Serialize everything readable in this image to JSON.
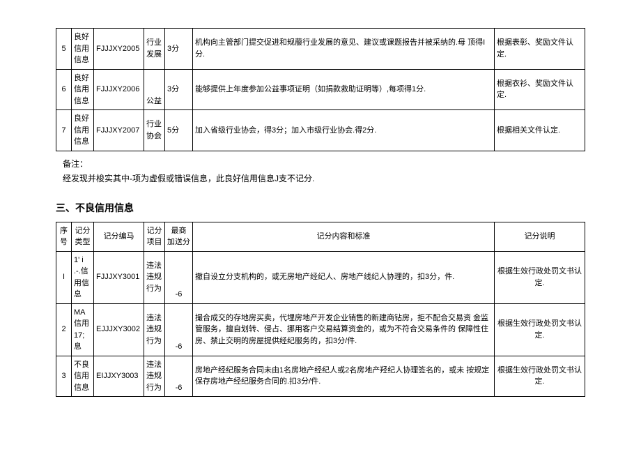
{
  "table1": {
    "rows": [
      {
        "idx": "5",
        "type": "良好信用信息",
        "code": "FJJJXY2005",
        "item": "行业发展",
        "score": "3分",
        "desc": "机构向主管部门提交促进和规菔行业发展的意见、建议或课题报告并被采纳的.母 顶得I分.",
        "note": "根据表彰、奖励文件认 定."
      },
      {
        "idx": "6",
        "type": "良好信用信息",
        "code": "FJJJXY2006",
        "item": "公益",
        "score": "3分",
        "desc": "能够提供上年度参加公益事项证明（如捐款救助证明等）,每项得1分.",
        "note": "根据衣衫、奖励文件认 定."
      },
      {
        "idx": "7",
        "type": "良好信用信息",
        "code": "FJJJXY2007",
        "item": "行业协会",
        "score": "5分",
        "desc": "加入省级行业协会，得3分；加入市级行业协会.得2分.",
        "note": "根据相关文件认定."
      }
    ]
  },
  "remark": {
    "title": "备注：",
    "text": "经发现并梭实其中-项为虚假或错误信息，此良好信用信息J支不记分."
  },
  "section3": "三、不良信用信息",
  "table2": {
    "headers": {
      "idx": "序号",
      "type": "记分类型",
      "code": "记分编马",
      "item": "记分项目",
      "score": "最商 加送分",
      "desc": "记分内容和标准",
      "note": "记分说明"
    },
    "rows": [
      {
        "idx": "I",
        "type": "1' i .-.信用信息",
        "code": "FJJJXY3001",
        "item": "违法违规行为",
        "score": "-6",
        "desc": "撤自设立分支机构的，或无房地产经纪人、房地产线纪人协理的，扣3分，件.",
        "note": "根据生效行政处罚文书认定."
      },
      {
        "idx": "2",
        "type": "MA 信用 17;息",
        "code": "EJJJXY3002",
        "item": "违法违规行为",
        "score": "-6",
        "desc": "撮合成交的存地房买卖，代埋房地产开发企业销售的新建商钻房，拒不配合交易资 金监管服务，擅自划转、侵占、挪用客户交易结算资金的，或为不符合交易条件的 保障性住房、禁止交明的房屋提供经纪服务的，扣3分/件.",
        "note": "根据生效行政处罚文书认定."
      },
      {
        "idx": "3",
        "type": "不良信用信息",
        "code": "EIJJXY3003",
        "item": "违法违规行为",
        "score": "-6",
        "desc": "房地产经纪服务合同未由1名房地产经纪人或2名房地产羟纪人协理签名的，或未 按规定保存房地产经纪服务合同的.扣3分/件.",
        "note": "根据生效行政处罚文书认定."
      }
    ]
  }
}
